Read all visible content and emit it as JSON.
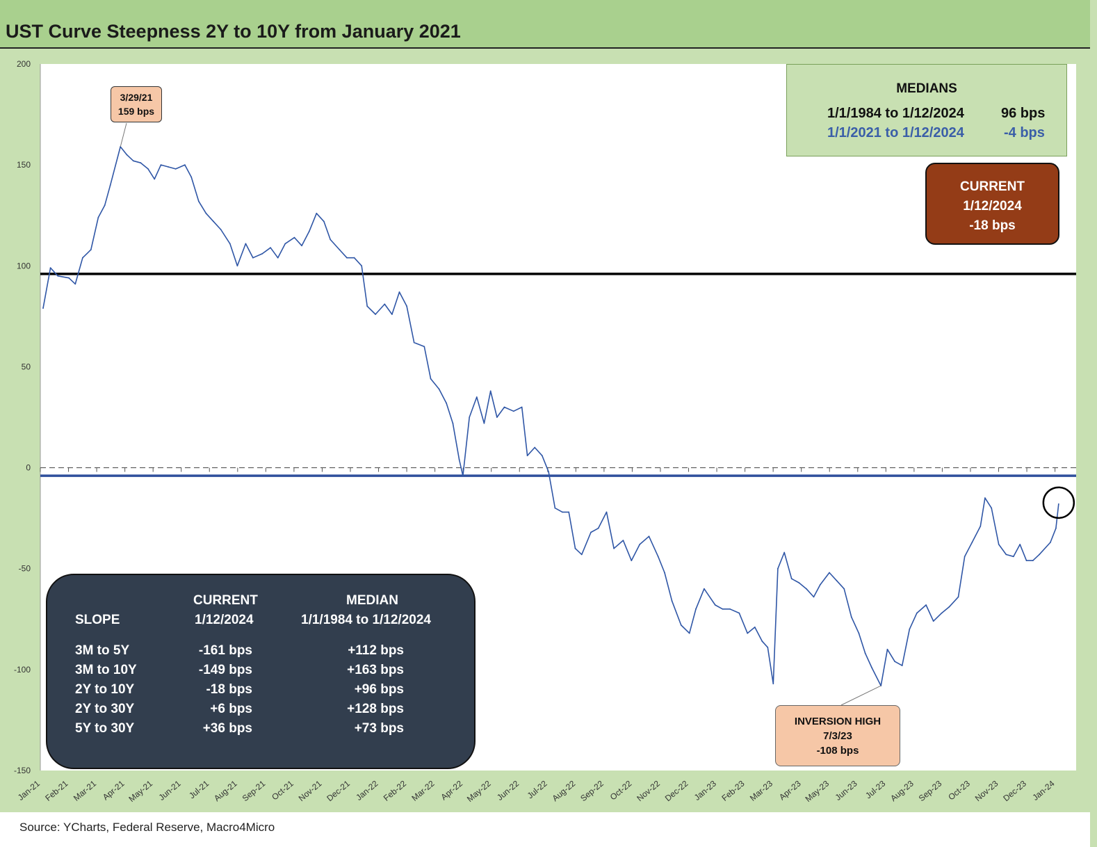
{
  "title": "UST Curve Steepness 2Y to 10Y from January 2021",
  "source": "Source: YCharts, Federal Reserve, Macro4Micro",
  "medians_box": {
    "header": "MEDIANS",
    "rows": [
      {
        "period": "1/1/1984 to 1/12/2024",
        "value": "96 bps",
        "color": "#111111"
      },
      {
        "period": "1/1/2021 to 1/12/2024",
        "value": "-4 bps",
        "color": "#3a5ea8"
      }
    ]
  },
  "current_box": {
    "line1": "CURRENT",
    "line2": "1/12/2024",
    "line3": "-18 bps"
  },
  "peak_callout": {
    "date": "3/29/21",
    "value": "159 bps"
  },
  "trough_callout": {
    "label": "INVERSION HIGH",
    "date": "7/3/23",
    "value": "-108 bps"
  },
  "slope_table": {
    "col_current": "CURRENT",
    "col_current_date": "1/12/2024",
    "col_median": "MEDIAN",
    "col_median_range": "1/1/1984 to 1/12/2024",
    "col_slope": "SLOPE",
    "rows": [
      {
        "slope": "3M to 5Y",
        "current": "-161 bps",
        "median": "+112 bps"
      },
      {
        "slope": "3M to 10Y",
        "current": "-149 bps",
        "median": "+163 bps"
      },
      {
        "slope": "2Y to 10Y",
        "current": "-18 bps",
        "median": "+96 bps"
      },
      {
        "slope": "2Y to 30Y",
        "current": "+6 bps",
        "median": "+128 bps"
      },
      {
        "slope": "5Y to 30Y",
        "current": "+36 bps",
        "median": "+73 bps"
      }
    ]
  },
  "chart_data": {
    "type": "line",
    "title": "UST Curve Steepness 2Y to 10Y from January 2021",
    "ylim": [
      -150,
      200
    ],
    "yticks": [
      200,
      150,
      100,
      50,
      0,
      -50,
      -100,
      -150
    ],
    "xticks": [
      "Jan-21",
      "Feb-21",
      "Mar-21",
      "Apr-21",
      "May-21",
      "Jun-21",
      "Jul-21",
      "Aug-21",
      "Sep-21",
      "Oct-21",
      "Nov-21",
      "Dec-21",
      "Jan-22",
      "Feb-22",
      "Mar-22",
      "Apr-22",
      "May-22",
      "Jun-22",
      "Jul-22",
      "Aug-22",
      "Sep-22",
      "Oct-22",
      "Nov-22",
      "Dec-22",
      "Jan-23",
      "Feb-23",
      "Mar-23",
      "Apr-23",
      "May-23",
      "Jun-23",
      "Jul-23",
      "Aug-23",
      "Sep-23",
      "Oct-23",
      "Nov-23",
      "Dec-23",
      "Jan-24"
    ],
    "reference_lines": [
      {
        "name": "Median 1/1/1984 to 1/12/2024",
        "value": 96,
        "color": "#000000"
      },
      {
        "name": "Median 1/1/2021 to 1/12/2024",
        "value": -4,
        "color": "#2f4f9c"
      },
      {
        "name": "Zero",
        "value": 0,
        "color": "#555555",
        "dashed": true
      }
    ],
    "series": [
      {
        "color": "#2f56a6",
        "points": [
          [
            "2021-01-04",
            79
          ],
          [
            "2021-01-12",
            99
          ],
          [
            "2021-01-20",
            95
          ],
          [
            "2021-02-01",
            94
          ],
          [
            "2021-02-08",
            91
          ],
          [
            "2021-02-16",
            104
          ],
          [
            "2021-02-25",
            108
          ],
          [
            "2021-03-05",
            124
          ],
          [
            "2021-03-12",
            130
          ],
          [
            "2021-03-18",
            140
          ],
          [
            "2021-03-29",
            159
          ],
          [
            "2021-04-05",
            155
          ],
          [
            "2021-04-12",
            152
          ],
          [
            "2021-04-20",
            151
          ],
          [
            "2021-04-28",
            148
          ],
          [
            "2021-05-05",
            143
          ],
          [
            "2021-05-12",
            150
          ],
          [
            "2021-05-20",
            149
          ],
          [
            "2021-05-28",
            148
          ],
          [
            "2021-06-07",
            150
          ],
          [
            "2021-06-14",
            144
          ],
          [
            "2021-06-22",
            132
          ],
          [
            "2021-06-30",
            126
          ],
          [
            "2021-07-08",
            122
          ],
          [
            "2021-07-16",
            118
          ],
          [
            "2021-07-26",
            111
          ],
          [
            "2021-08-03",
            100
          ],
          [
            "2021-08-12",
            111
          ],
          [
            "2021-08-20",
            104
          ],
          [
            "2021-08-30",
            106
          ],
          [
            "2021-09-08",
            109
          ],
          [
            "2021-09-16",
            104
          ],
          [
            "2021-09-24",
            111
          ],
          [
            "2021-10-04",
            114
          ],
          [
            "2021-10-12",
            110
          ],
          [
            "2021-10-20",
            117
          ],
          [
            "2021-10-28",
            126
          ],
          [
            "2021-11-05",
            122
          ],
          [
            "2021-11-12",
            113
          ],
          [
            "2021-11-22",
            108
          ],
          [
            "2021-11-30",
            104
          ],
          [
            "2021-12-08",
            104
          ],
          [
            "2021-12-16",
            100
          ],
          [
            "2021-12-22",
            80
          ],
          [
            "2021-12-31",
            76
          ],
          [
            "2022-01-10",
            81
          ],
          [
            "2022-01-18",
            76
          ],
          [
            "2022-01-26",
            87
          ],
          [
            "2022-02-03",
            80
          ],
          [
            "2022-02-11",
            62
          ],
          [
            "2022-02-22",
            60
          ],
          [
            "2022-03-01",
            44
          ],
          [
            "2022-03-10",
            39
          ],
          [
            "2022-03-18",
            32
          ],
          [
            "2022-03-25",
            22
          ],
          [
            "2022-04-01",
            4
          ],
          [
            "2022-04-05",
            -4
          ],
          [
            "2022-04-12",
            25
          ],
          [
            "2022-04-20",
            35
          ],
          [
            "2022-04-28",
            22
          ],
          [
            "2022-05-05",
            38
          ],
          [
            "2022-05-12",
            25
          ],
          [
            "2022-05-20",
            30
          ],
          [
            "2022-05-30",
            28
          ],
          [
            "2022-06-08",
            30
          ],
          [
            "2022-06-14",
            6
          ],
          [
            "2022-06-22",
            10
          ],
          [
            "2022-06-30",
            6
          ],
          [
            "2022-07-07",
            -2
          ],
          [
            "2022-07-14",
            -20
          ],
          [
            "2022-07-22",
            -22
          ],
          [
            "2022-07-29",
            -22
          ],
          [
            "2022-08-05",
            -40
          ],
          [
            "2022-08-12",
            -43
          ],
          [
            "2022-08-22",
            -32
          ],
          [
            "2022-08-30",
            -30
          ],
          [
            "2022-09-08",
            -22
          ],
          [
            "2022-09-16",
            -40
          ],
          [
            "2022-09-26",
            -36
          ],
          [
            "2022-10-05",
            -46
          ],
          [
            "2022-10-14",
            -38
          ],
          [
            "2022-10-24",
            -34
          ],
          [
            "2022-11-03",
            -44
          ],
          [
            "2022-11-10",
            -52
          ],
          [
            "2022-11-18",
            -66
          ],
          [
            "2022-11-28",
            -78
          ],
          [
            "2022-12-07",
            -82
          ],
          [
            "2022-12-14",
            -70
          ],
          [
            "2022-12-23",
            -60
          ],
          [
            "2023-01-04",
            -68
          ],
          [
            "2023-01-12",
            -70
          ],
          [
            "2023-01-20",
            -70
          ],
          [
            "2023-01-30",
            -72
          ],
          [
            "2023-02-08",
            -82
          ],
          [
            "2023-02-16",
            -79
          ],
          [
            "2023-02-24",
            -86
          ],
          [
            "2023-03-02",
            -89
          ],
          [
            "2023-03-08",
            -107
          ],
          [
            "2023-03-13",
            -50
          ],
          [
            "2023-03-20",
            -42
          ],
          [
            "2023-03-28",
            -55
          ],
          [
            "2023-04-05",
            -57
          ],
          [
            "2023-04-13",
            -60
          ],
          [
            "2023-04-21",
            -64
          ],
          [
            "2023-04-28",
            -58
          ],
          [
            "2023-05-08",
            -52
          ],
          [
            "2023-05-16",
            -56
          ],
          [
            "2023-05-24",
            -60
          ],
          [
            "2023-06-01",
            -74
          ],
          [
            "2023-06-09",
            -82
          ],
          [
            "2023-06-16",
            -92
          ],
          [
            "2023-06-23",
            -99
          ],
          [
            "2023-07-03",
            -108
          ],
          [
            "2023-07-10",
            -90
          ],
          [
            "2023-07-18",
            -96
          ],
          [
            "2023-07-26",
            -98
          ],
          [
            "2023-08-03",
            -80
          ],
          [
            "2023-08-11",
            -72
          ],
          [
            "2023-08-21",
            -68
          ],
          [
            "2023-08-29",
            -76
          ],
          [
            "2023-09-07",
            -72
          ],
          [
            "2023-09-15",
            -69
          ],
          [
            "2023-09-25",
            -64
          ],
          [
            "2023-10-02",
            -44
          ],
          [
            "2023-10-10",
            -37
          ],
          [
            "2023-10-19",
            -29
          ],
          [
            "2023-10-24",
            -15
          ],
          [
            "2023-10-31",
            -20
          ],
          [
            "2023-11-08",
            -38
          ],
          [
            "2023-11-16",
            -43
          ],
          [
            "2023-11-24",
            -44
          ],
          [
            "2023-12-01",
            -38
          ],
          [
            "2023-12-08",
            -46
          ],
          [
            "2023-12-15",
            -46
          ],
          [
            "2023-12-22",
            -43
          ],
          [
            "2024-01-03",
            -37
          ],
          [
            "2024-01-09",
            -30
          ],
          [
            "2024-01-12",
            -18
          ]
        ]
      }
    ]
  }
}
